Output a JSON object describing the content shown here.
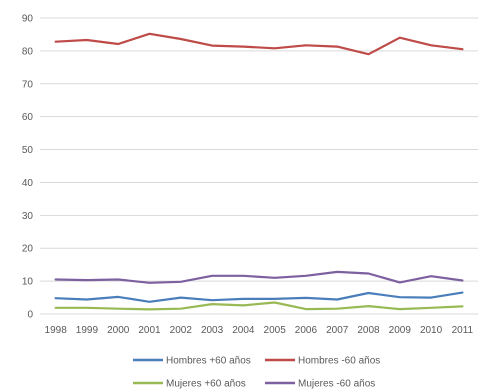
{
  "chart_data": {
    "type": "line",
    "title": "",
    "xlabel": "",
    "ylabel": "",
    "x": [
      "1998",
      "1999",
      "2000",
      "2001",
      "2002",
      "2003",
      "2004",
      "2005",
      "2006",
      "2007",
      "2008",
      "2009",
      "2010",
      "2011"
    ],
    "yticks": [
      "0",
      "10",
      "20",
      "30",
      "40",
      "50",
      "60",
      "70",
      "80",
      "90"
    ],
    "ylim": [
      0,
      90
    ],
    "grid": true,
    "legend_position": "bottom",
    "series": [
      {
        "name": "Hombres +60 años",
        "color": "#4a7ebb",
        "values": [
          4.8,
          4.4,
          5.2,
          3.7,
          5.0,
          4.2,
          4.6,
          4.6,
          4.9,
          4.4,
          6.4,
          5.1,
          5.0,
          6.5
        ]
      },
      {
        "name": "Hombres -60 años",
        "color": "#be4b48",
        "values": [
          82.8,
          83.3,
          82.1,
          85.2,
          83.6,
          81.6,
          81.3,
          80.8,
          81.7,
          81.3,
          79.0,
          84.0,
          81.7,
          80.5
        ]
      },
      {
        "name": "Mujeres +60 años",
        "color": "#98b954",
        "values": [
          1.9,
          1.9,
          1.6,
          1.4,
          1.6,
          3.0,
          2.6,
          3.5,
          1.5,
          1.6,
          2.4,
          1.5,
          1.9,
          2.3
        ]
      },
      {
        "name": "Mujeres -60 años",
        "color": "#7d60a0",
        "values": [
          10.5,
          10.3,
          10.5,
          9.5,
          9.8,
          11.6,
          11.6,
          11.0,
          11.6,
          12.8,
          12.3,
          9.6,
          11.5,
          10.2
        ]
      }
    ]
  }
}
